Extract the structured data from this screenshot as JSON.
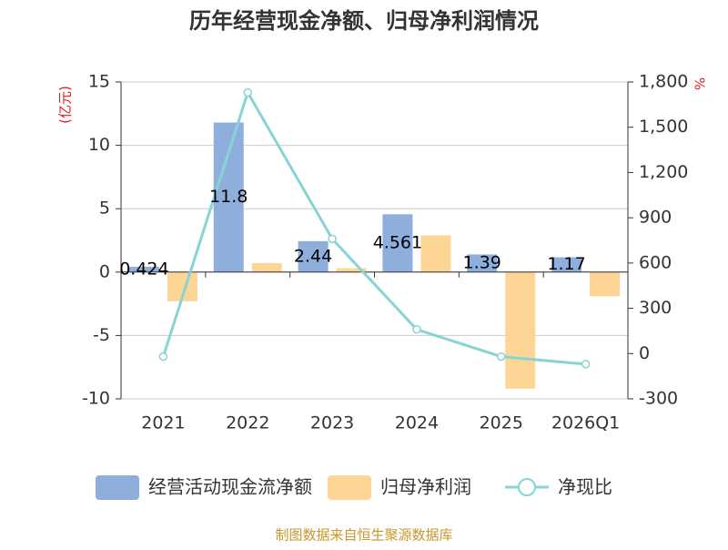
{
  "chart_data": {
    "type": "bar",
    "title": "历年经营现金净额、归母净利润情况",
    "y_unit": "(亿元)",
    "y2_unit": "%",
    "source": "制图数据来自恒生聚源数据库",
    "categories": [
      "2021",
      "2022",
      "2023",
      "2024",
      "2025",
      "2026Q1"
    ],
    "series": [
      {
        "name": "经营活动现金流净额",
        "type": "bar",
        "color": "#8eaedc",
        "values": [
          0.424,
          11.8,
          2.44,
          4.561,
          1.39,
          1.17
        ],
        "show_labels": true
      },
      {
        "name": "归母净利润",
        "type": "bar",
        "color": "#fdd594",
        "values": [
          -2.3,
          0.7,
          0.3,
          2.9,
          -9.2,
          -1.9
        ]
      },
      {
        "name": "净现比",
        "type": "line",
        "axis": "y2",
        "color": "#88d3d6",
        "values": [
          -20,
          1730,
          760,
          160,
          -20,
          -70
        ]
      }
    ],
    "ylim": [
      -10,
      15
    ],
    "yticks": [
      -10,
      -5,
      0,
      5,
      10,
      15
    ],
    "y2lim": [
      -300,
      1800
    ],
    "y2ticks": [
      -300,
      0,
      300,
      600,
      900,
      {
        "value": 1200,
        "label": "1,200"
      },
      {
        "value": 1500,
        "label": "1,500"
      },
      {
        "value": 1800,
        "label": "1,800"
      }
    ],
    "grid": true
  }
}
